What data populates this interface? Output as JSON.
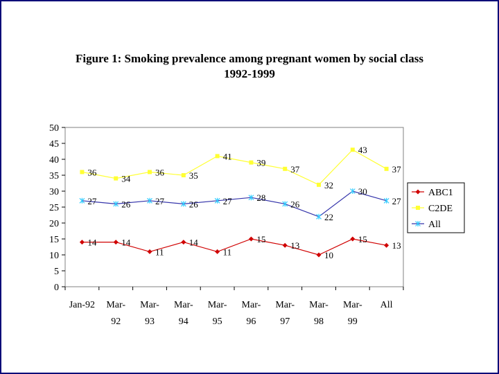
{
  "chart_data": {
    "type": "line",
    "title": "Figure 1: Smoking prevalence among pregnant women by social class",
    "subtitle": "1992-1999",
    "categories": [
      [
        "Jan-92"
      ],
      [
        "Mar-",
        "92"
      ],
      [
        "Mar-",
        "93"
      ],
      [
        "Mar-",
        "94"
      ],
      [
        "Mar-",
        "95"
      ],
      [
        "Mar-",
        "96"
      ],
      [
        "Mar-",
        "97"
      ],
      [
        "Mar-",
        "98"
      ],
      [
        "Mar-",
        "99"
      ],
      [
        "All"
      ]
    ],
    "ylim": [
      0,
      50
    ],
    "yticks": [
      0,
      5,
      10,
      15,
      20,
      25,
      30,
      35,
      40,
      45,
      50
    ],
    "grid": false,
    "legend_position": "right",
    "series": [
      {
        "name": "ABC1",
        "color": "#d00000",
        "marker": "diamond",
        "values": [
          14,
          14,
          11,
          14,
          11,
          15,
          13,
          10,
          15,
          13
        ],
        "labels": [
          "14",
          "14",
          "11",
          "14",
          "11",
          "15",
          "13",
          "10",
          "15",
          "13"
        ]
      },
      {
        "name": "C2DE",
        "color": "#ffff33",
        "marker": "square",
        "values": [
          36,
          34,
          36,
          35,
          41,
          39,
          37,
          32,
          43,
          37
        ],
        "labels": [
          "36",
          "34",
          "36",
          "35",
          "41",
          "39",
          "37",
          "32",
          "43",
          "37"
        ]
      },
      {
        "name": "All",
        "color": "#3333aa",
        "marker_color": "#33ccff",
        "marker": "x",
        "values": [
          27,
          26,
          27,
          26,
          27,
          28,
          26,
          22,
          30,
          27
        ],
        "labels": [
          "27",
          "26",
          "27",
          "26",
          "27",
          "28",
          "26",
          "22",
          "30",
          "27"
        ]
      }
    ]
  }
}
